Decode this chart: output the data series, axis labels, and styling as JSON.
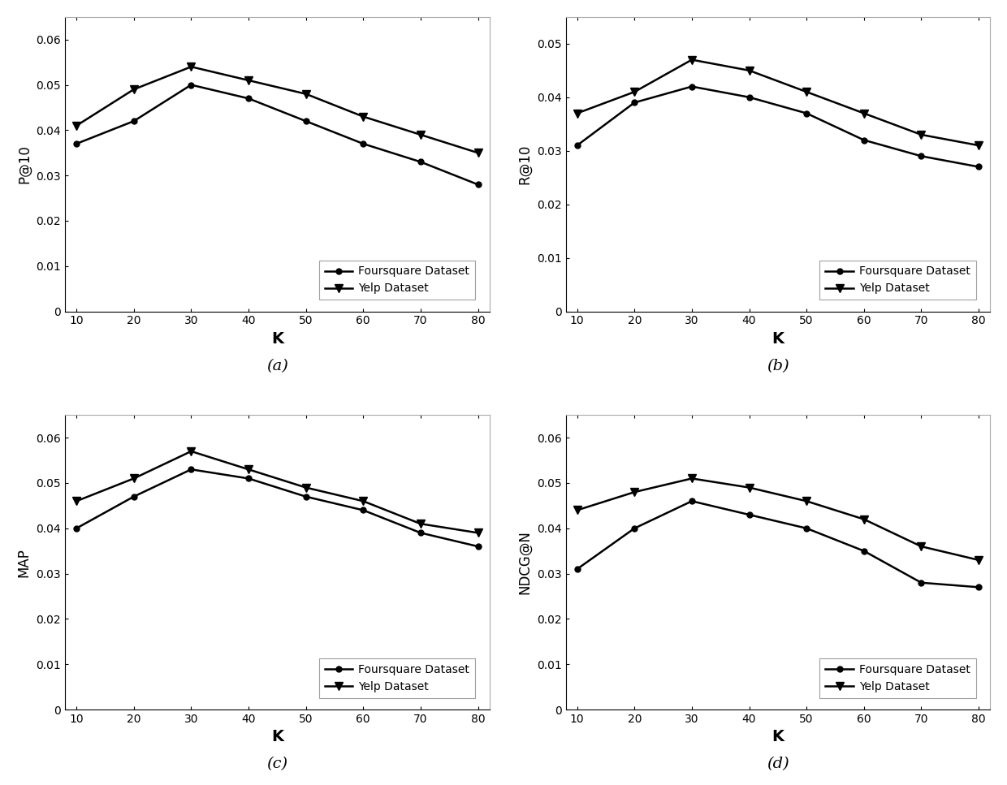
{
  "x": [
    10,
    20,
    30,
    40,
    50,
    60,
    70,
    80
  ],
  "subplot_a": {
    "ylabel": "P@10",
    "label": "(a)",
    "foursquare": [
      0.037,
      0.042,
      0.05,
      0.047,
      0.042,
      0.037,
      0.033,
      0.028
    ],
    "yelp": [
      0.041,
      0.049,
      0.054,
      0.051,
      0.048,
      0.043,
      0.039,
      0.035
    ],
    "ylim": [
      0,
      0.065
    ],
    "yticks": [
      0,
      0.01,
      0.02,
      0.03,
      0.04,
      0.05,
      0.06
    ]
  },
  "subplot_b": {
    "ylabel": "R@10",
    "label": "(b)",
    "foursquare": [
      0.031,
      0.039,
      0.042,
      0.04,
      0.037,
      0.032,
      0.029,
      0.027
    ],
    "yelp": [
      0.037,
      0.041,
      0.047,
      0.045,
      0.041,
      0.037,
      0.033,
      0.031
    ],
    "ylim": [
      0,
      0.055
    ],
    "yticks": [
      0,
      0.01,
      0.02,
      0.03,
      0.04,
      0.05
    ]
  },
  "subplot_c": {
    "ylabel": "MAP",
    "label": "(c)",
    "foursquare": [
      0.04,
      0.047,
      0.053,
      0.051,
      0.047,
      0.044,
      0.039,
      0.036
    ],
    "yelp": [
      0.046,
      0.051,
      0.057,
      0.053,
      0.049,
      0.046,
      0.041,
      0.039
    ],
    "ylim": [
      0,
      0.065
    ],
    "yticks": [
      0,
      0.01,
      0.02,
      0.03,
      0.04,
      0.05,
      0.06
    ]
  },
  "subplot_d": {
    "ylabel": "NDCG@N",
    "label": "(d)",
    "foursquare": [
      0.031,
      0.04,
      0.046,
      0.043,
      0.04,
      0.035,
      0.028,
      0.027
    ],
    "yelp": [
      0.044,
      0.048,
      0.051,
      0.049,
      0.046,
      0.042,
      0.036,
      0.033
    ],
    "ylim": [
      0,
      0.065
    ],
    "yticks": [
      0,
      0.01,
      0.02,
      0.03,
      0.04,
      0.05,
      0.06
    ]
  },
  "xlabel": "K",
  "legend_foursquare": "Foursquare Dataset",
  "legend_yelp": "Yelp Dataset",
  "line_color": "#000000",
  "marker_circle": "o",
  "marker_triangle": "v",
  "background_color": "#ffffff",
  "xticks": [
    10,
    20,
    30,
    40,
    50,
    60,
    70,
    80
  ]
}
